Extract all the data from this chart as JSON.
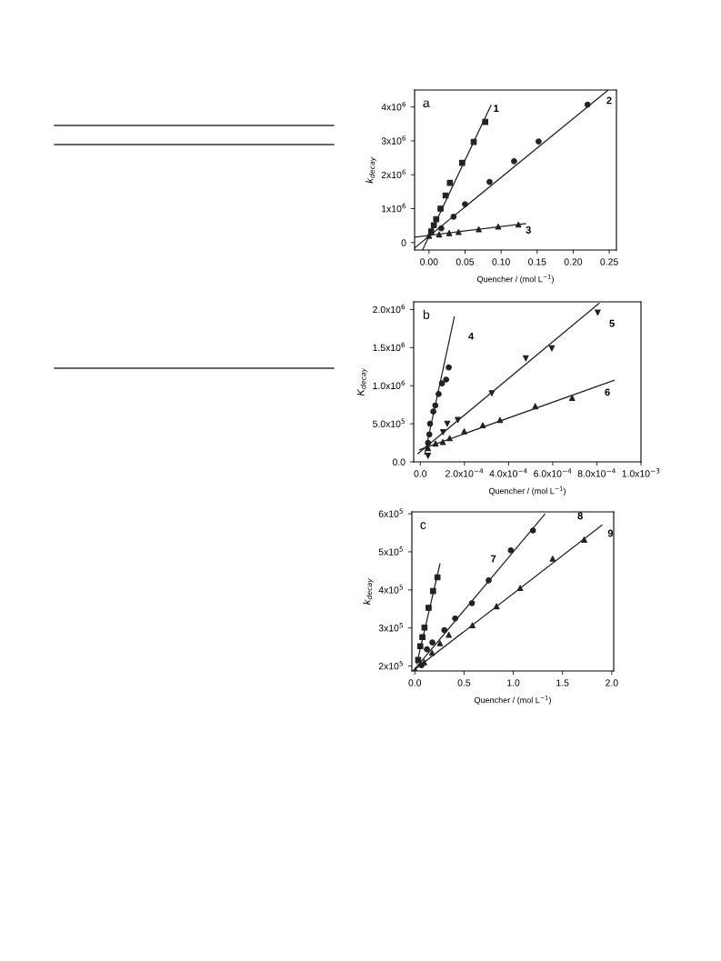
{
  "chart_data": [
    {
      "type": "scatter",
      "title": "a",
      "xlabel": "Quencher / (mol L$^{−1}$)",
      "ylabel": "k$_{decay}$",
      "xlim": [
        -0.02,
        0.26
      ],
      "xticks": [
        {
          "value": 0,
          "label": "0.00"
        },
        {
          "value": 0.05,
          "label": "0.05"
        },
        {
          "value": 0.1,
          "label": "0.10"
        },
        {
          "value": 0.15,
          "label": "0.15"
        },
        {
          "value": 0.2,
          "label": "0.20"
        },
        {
          "value": 0.25,
          "label": "0.25"
        }
      ],
      "ylim": [
        -220000,
        4500000
      ],
      "yticks": [
        0,
        {
          "value": 1000000,
          "label": "1x10$^{6}$"
        },
        {
          "value": 2000000,
          "label": "2x10$^{6}$"
        },
        {
          "value": 3000000,
          "label": "3x10$^{6}$"
        },
        {
          "value": 4000000,
          "label": "4x10$^{6}$"
        }
      ],
      "grid": false,
      "legend": false,
      "series": [
        {
          "type": "scatter",
          "marker": "square",
          "color": "#222222",
          "x": [
            null,
            0.003,
            0.0067,
            0.01,
            0.016,
            0.023,
            0.029,
            0.046,
            0.062,
            0.078
          ],
          "values": [
            null,
            330000,
            510000,
            690000,
            1000000,
            1390000,
            1760000,
            2350000,
            2970000,
            3560000
          ]
        },
        {
          "type": "scatter",
          "marker": "circle",
          "color": "#222222",
          "x": [
            null,
            0.017,
            0.034,
            0.05,
            0.084,
            0.118,
            0.152,
            0.22
          ],
          "values": [
            null,
            420000,
            760000,
            1130000,
            1790000,
            2400000,
            2980000,
            4070000
          ]
        },
        {
          "type": "scatter",
          "marker": "triangle",
          "color": "#222222",
          "x": [
            0,
            0.014,
            0.028,
            0.041,
            0.069,
            0.096,
            0.124
          ],
          "values": [
            200000,
            240000,
            280000,
            310000,
            390000,
            470000,
            530000
          ]
        },
        {
          "type": "line",
          "color": "#222222",
          "x": [
            -0.009,
            0.086
          ],
          "values": [
            -220000,
            4050000
          ]
        },
        {
          "type": "line",
          "color": "#222222",
          "x": [
            -0.02,
            0.248
          ],
          "values": [
            -160000,
            4490000
          ]
        },
        {
          "type": "line",
          "color": "#222222",
          "x": [
            -0.02,
            0.134
          ],
          "values": [
            160000,
            560000
          ]
        }
      ],
      "annotations": [
        "1",
        "2",
        "3"
      ]
    },
    {
      "type": "scatter",
      "title": "b",
      "xlabel": "Quencher / (mol L$^{−1}$)",
      "ylabel": "K$_{decay}$",
      "xlim": [
        -3e-05,
        0.001
      ],
      "xticks": [
        {
          "value": 0,
          "label": "0.0"
        },
        {
          "value": 0.0002,
          "label": "2.0x10$^{−4}$"
        },
        {
          "value": 0.0004,
          "label": "4.0x10$^{−4}$"
        },
        {
          "value": 0.0006,
          "label": "6.0x10$^{−4}$"
        },
        {
          "value": 0.0008,
          "label": "8.0x10$^{−4}$"
        },
        {
          "value": 0.001,
          "label": "1.0x10$^{−3}$"
        }
      ],
      "ylim": [
        0,
        2100000
      ],
      "yticks": [
        {
          "value": 0,
          "label": "0.0"
        },
        {
          "value": 500000,
          "label": "5.0x10$^{5}$"
        },
        {
          "value": 1000000,
          "label": "1.0x10$^{6}$"
        },
        {
          "value": 1500000,
          "label": "1.5x10$^{6}$"
        },
        {
          "value": 2000000,
          "label": "2.0x10$^{6}$"
        }
      ],
      "grid": false,
      "legend": false,
      "series": [
        {
          "type": "scatter",
          "marker": "circle",
          "color": "#222222",
          "x": [
            3.5e-05,
            4.1e-05,
            4.4e-05,
            5.9e-05,
            6.8e-05,
            8.3e-05,
            9.8e-05,
            0.000117,
            0.000129
          ],
          "values": [
            250000,
            360000,
            500000,
            660000,
            740000,
            890000,
            1030000,
            1080000,
            1240000
          ]
        },
        {
          "type": "scatter",
          "marker": "triangle_down",
          "color": "#222222",
          "x": [
            3.5e-05,
            0.000103,
            0.000122,
            0.00017,
            0.000324,
            0.000478,
            0.000596,
            0.000804
          ],
          "values": [
            80000,
            390000,
            500000,
            550000,
            900000,
            1360000,
            1490000,
            1960000
          ]
        },
        {
          "type": "scatter",
          "marker": "triangle",
          "color": "#222222",
          "x": [
            3.5e-05,
            6.9e-05,
            0.000102,
            0.000133,
            0.000199,
            0.000283,
            0.000361,
            0.000521,
            0.000688
          ],
          "values": [
            180000,
            240000,
            260000,
            310000,
            400000,
            480000,
            550000,
            730000,
            840000
          ]
        },
        {
          "type": "line",
          "color": "#222222",
          "x": [
            2e-05,
            0.000154
          ],
          "values": [
            100000,
            1900000
          ]
        },
        {
          "type": "line",
          "color": "#222222",
          "x": [
            -1e-05,
            0.00081
          ],
          "values": [
            110000,
            2080000
          ]
        },
        {
          "type": "line",
          "color": "#222222",
          "x": [
            -3e-06,
            0.000878
          ],
          "values": [
            160000,
            1070000
          ]
        }
      ],
      "annotations": [
        "4",
        "5",
        "6"
      ]
    },
    {
      "type": "scatter",
      "title": "c",
      "xlabel": "Quencher / (mol L$^{−1}$)",
      "ylabel": "k$_{decay}$",
      "xlim": [
        -0.03,
        2.02
      ],
      "xticks": [
        {
          "value": 0,
          "label": "0.0"
        },
        0.5,
        {
          "value": 1,
          "label": "1.0"
        },
        1.5,
        {
          "value": 2,
          "label": "2.0"
        }
      ],
      "ylim": [
        187000,
        605000
      ],
      "yticks": [
        {
          "value": 200000,
          "label": "2x10$^{5}$"
        },
        {
          "value": 300000,
          "label": "3x10$^{5}$"
        },
        {
          "value": 400000,
          "label": "4x10$^{5}$"
        },
        {
          "value": 500000,
          "label": "5x10$^{5}$"
        },
        {
          "value": 600000,
          "label": "6x10$^{5}$"
        }
      ],
      "grid": false,
      "legend": false,
      "series": [
        {
          "type": "scatter",
          "marker": "square",
          "color": "#222222",
          "x": [
            0.034,
            0.055,
            0.077,
            0.098,
            0.14,
            0.185,
            0.23
          ],
          "values": [
            216000,
            252000,
            276000,
            301000,
            353000,
            397000,
            433000
          ]
        },
        {
          "type": "scatter",
          "marker": "circle",
          "color": "#222222",
          "x": [
            0.068,
            0.123,
            0.178,
            0.3,
            0.41,
            0.58,
            0.75,
            0.975,
            1.2
          ],
          "values": [
            202000,
            244000,
            262000,
            294000,
            325000,
            365000,
            425000,
            504000,
            556000
          ]
        },
        {
          "type": "scatter",
          "marker": "triangle",
          "color": "#222222",
          "x": [
            0.006,
            0.095,
            0.175,
            0.255,
            0.345,
            0.585,
            0.83,
            1.07,
            1.4,
            1.72
          ],
          "values": [
            189000,
            210000,
            235000,
            260000,
            282000,
            307000,
            357000,
            405000,
            482000,
            532000
          ]
        },
        {
          "type": "line",
          "color": "#222222",
          "x": [
            0.02,
            0.255
          ],
          "values": [
            206000,
            468000
          ]
        },
        {
          "type": "line",
          "color": "#222222",
          "x": [
            -0.01,
            1.32
          ],
          "values": [
            189000,
            599000
          ]
        },
        {
          "type": "line",
          "color": "#222222",
          "x": [
            -0.02,
            1.9
          ],
          "values": [
            187000,
            570000
          ]
        }
      ],
      "annotations": [
        "7",
        "8",
        "9"
      ]
    }
  ]
}
